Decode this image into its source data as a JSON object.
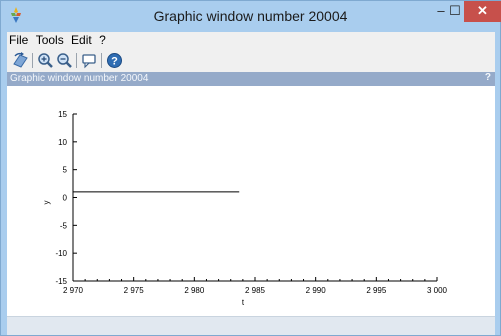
{
  "window": {
    "title": "Graphic window number 20004",
    "minimize_label": "–",
    "maximize_label": "☐",
    "close_label": "✕"
  },
  "menu": [
    "File",
    "Tools",
    "Edit",
    "?"
  ],
  "toolbar": {
    "buttons": [
      "rotate-icon",
      "zoom-in-icon",
      "zoom-out-icon",
      "datatip-icon",
      "help-icon"
    ]
  },
  "panel": {
    "title": "Graphic window number 20004",
    "help_label": "?"
  },
  "colors": {
    "titlebar": "#a9cdee",
    "close_button": "#c7504b",
    "panel_header": "#95aac9",
    "line": "#000000"
  },
  "chart_data": {
    "type": "line",
    "xlabel": "t",
    "ylabel": "y",
    "xlim": [
      2970,
      3000
    ],
    "ylim": [
      -15,
      15
    ],
    "x_ticks": [
      2970,
      2975,
      2980,
      2985,
      2990,
      2995,
      3000
    ],
    "x_tick_labels": [
      "2 970",
      "2 975",
      "2 980",
      "2 985",
      "2 990",
      "2 995",
      "3 000"
    ],
    "y_ticks": [
      15,
      10,
      5,
      0,
      -5,
      -10,
      -15
    ],
    "y_tick_labels": [
      "15",
      "10",
      "5",
      "0",
      "-5",
      "-10",
      "-15"
    ],
    "series": [
      {
        "x": [
          2970,
          2983.7
        ],
        "y": [
          1,
          1
        ]
      }
    ]
  }
}
